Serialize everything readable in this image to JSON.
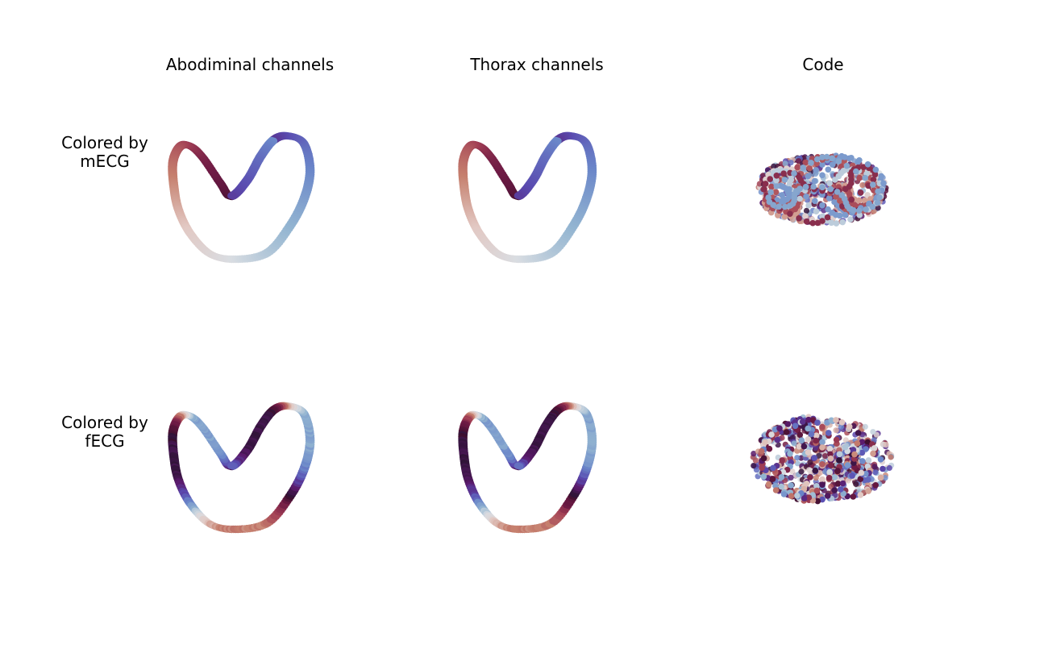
{
  "columns": [
    "Abodiminal channels",
    "Thorax channels",
    "Code"
  ],
  "rows": [
    {
      "line1": "Colored by",
      "line2": "mECG"
    },
    {
      "line1": "Colored by",
      "line2": "fECG"
    }
  ],
  "colormap": [
    "#2f1436",
    "#5b1a6b",
    "#5a4bb0",
    "#6a86c9",
    "#93b5d1",
    "#d9dde2",
    "#e2c9c4",
    "#c6806e",
    "#a23f55",
    "#6d1a44",
    "#3a0f2e"
  ],
  "chart_data": {
    "type": "scatter",
    "title": "",
    "grid": false,
    "panels": [
      {
        "row": "mECG",
        "column": "Abodiminal channels",
        "kind": "loop",
        "color_by": "mECG"
      },
      {
        "row": "mECG",
        "column": "Thorax channels",
        "kind": "loop",
        "color_by": "mECG"
      },
      {
        "row": "mECG",
        "column": "Code",
        "kind": "torus",
        "color_by": "mECG"
      },
      {
        "row": "fECG",
        "column": "Abodiminal channels",
        "kind": "loop",
        "color_by": "fECG"
      },
      {
        "row": "fECG",
        "column": "Thorax channels",
        "kind": "loop",
        "color_by": "fECG"
      },
      {
        "row": "fECG",
        "column": "Code",
        "kind": "torus",
        "color_by": "fECG"
      }
    ]
  }
}
